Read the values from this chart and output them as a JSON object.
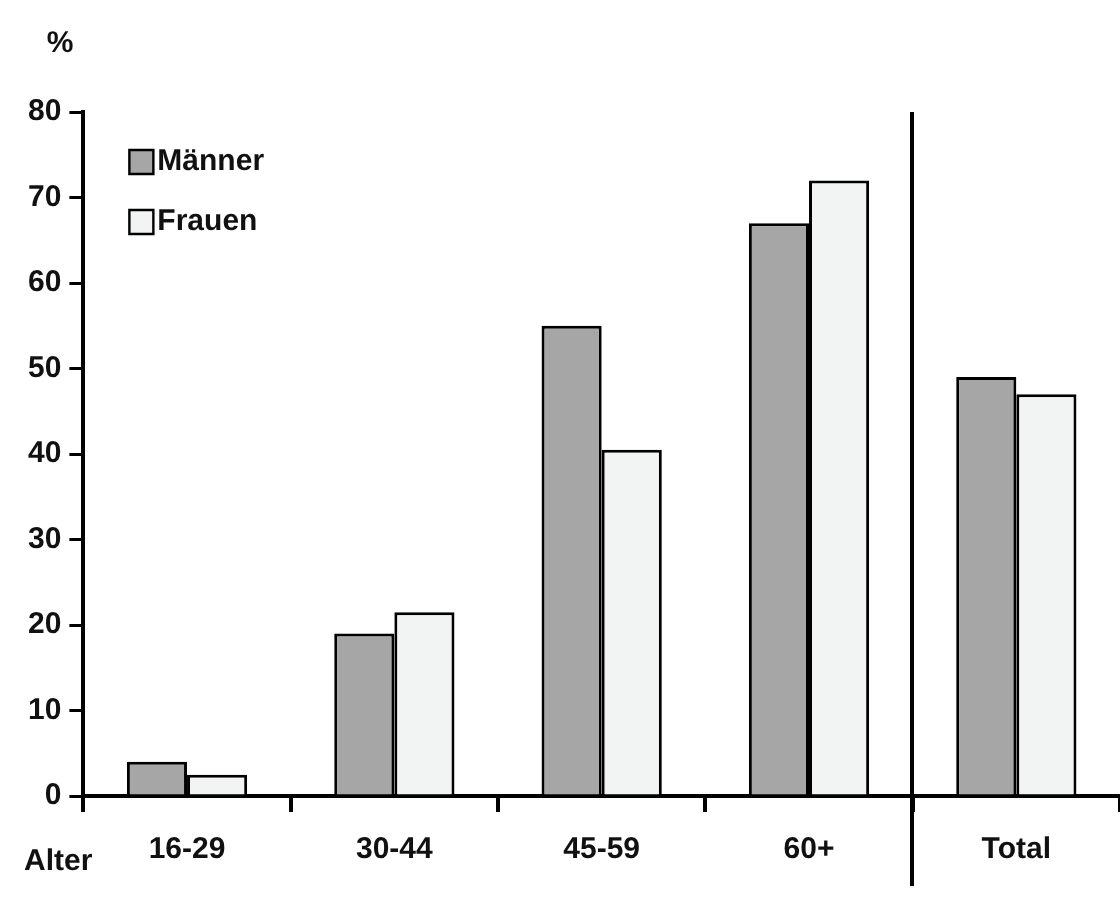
{
  "chart_data": {
    "type": "bar",
    "ylabel": "%",
    "xlabel": "Alter",
    "categories": [
      "16-29",
      "30-44",
      "45-59",
      "60+",
      "Total"
    ],
    "series": [
      {
        "name": "Männer",
        "color": "#a6a6a6",
        "values": [
          4,
          19,
          55,
          67,
          49
        ]
      },
      {
        "name": "Frauen",
        "color": "#f2f4f3",
        "values": [
          2.5,
          21.5,
          40.5,
          72,
          47
        ]
      }
    ],
    "ylim": [
      0,
      80
    ],
    "yticks": [
      0,
      10,
      20,
      30,
      40,
      50,
      60,
      70,
      80
    ],
    "grid": false,
    "legend": "top left"
  }
}
